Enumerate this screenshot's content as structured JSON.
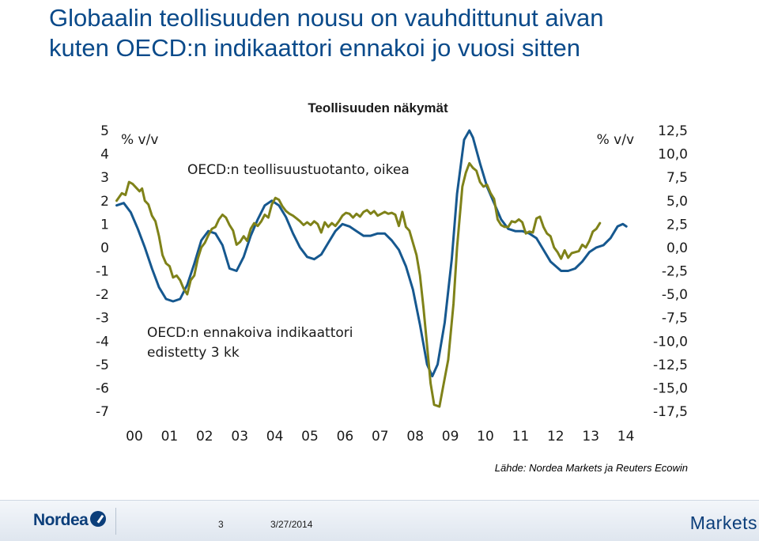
{
  "slide": {
    "title_line1": "Globaalin teollisuuden nousu on vauhdittunut aivan",
    "title_line2": "kuten OECD:n indikaattori ennakoi jo vuosi sitten",
    "source": "Lähde: Nordea Markets ja Reuters Ecowin"
  },
  "footer": {
    "logo_text": "Nordea",
    "page_number": "3",
    "date": "3/27/2014",
    "brand": "Markets"
  },
  "colors": {
    "leading_indicator": "#16588f",
    "industrial_production": "#7f8219",
    "title": "#0a4a8a"
  },
  "chart_data": {
    "type": "line",
    "title": "Teollisuuden näkymät",
    "left_axis": {
      "unit_label": "% v/v",
      "ylim": [
        -7,
        5
      ],
      "ticks": [
        "5",
        "4",
        "3",
        "2",
        "1",
        "0",
        "-1",
        "-2",
        "-3",
        "-4",
        "-5",
        "-6",
        "-7"
      ]
    },
    "right_axis": {
      "unit_label": "% v/v",
      "ylim": [
        -17.5,
        12.5
      ],
      "ticks": [
        "12,5",
        "10,0",
        "7,5",
        "5,0",
        "2,5",
        "0,0",
        "-2,5",
        "-5,0",
        "-7,5",
        "-10,0",
        "-12,5",
        "-15,0",
        "-17,5"
      ]
    },
    "x_axis": {
      "range": [
        2000,
        2014.3
      ],
      "ticks": [
        "00",
        "01",
        "02",
        "03",
        "04",
        "05",
        "06",
        "07",
        "08",
        "09",
        "10",
        "11",
        "12",
        "13",
        "14"
      ]
    },
    "series": [
      {
        "name": "OECD:n ennakoiva indikaattori edistetty 3 kk",
        "label_line1": "OECD:n ennakoiva indikaattori",
        "label_line2": "edistetty 3 kk",
        "axis": "left",
        "points": [
          [
            1999.9,
            1.8
          ],
          [
            2000.1,
            1.9
          ],
          [
            2000.3,
            1.5
          ],
          [
            2000.5,
            0.8
          ],
          [
            2000.7,
            0.0
          ],
          [
            2000.9,
            -0.9
          ],
          [
            2001.1,
            -1.7
          ],
          [
            2001.3,
            -2.2
          ],
          [
            2001.5,
            -2.3
          ],
          [
            2001.7,
            -2.2
          ],
          [
            2001.9,
            -1.6
          ],
          [
            2002.1,
            -0.7
          ],
          [
            2002.3,
            0.3
          ],
          [
            2002.5,
            0.7
          ],
          [
            2002.7,
            0.6
          ],
          [
            2002.9,
            0.1
          ],
          [
            2003.1,
            -0.9
          ],
          [
            2003.3,
            -1.0
          ],
          [
            2003.5,
            -0.4
          ],
          [
            2003.7,
            0.5
          ],
          [
            2003.9,
            1.2
          ],
          [
            2004.1,
            1.8
          ],
          [
            2004.3,
            2.0
          ],
          [
            2004.5,
            1.8
          ],
          [
            2004.7,
            1.3
          ],
          [
            2004.9,
            0.6
          ],
          [
            2005.1,
            0.0
          ],
          [
            2005.3,
            -0.4
          ],
          [
            2005.5,
            -0.5
          ],
          [
            2005.7,
            -0.3
          ],
          [
            2005.9,
            0.2
          ],
          [
            2006.1,
            0.7
          ],
          [
            2006.3,
            1.0
          ],
          [
            2006.5,
            0.9
          ],
          [
            2006.7,
            0.7
          ],
          [
            2006.9,
            0.5
          ],
          [
            2007.1,
            0.5
          ],
          [
            2007.3,
            0.6
          ],
          [
            2007.5,
            0.6
          ],
          [
            2007.7,
            0.3
          ],
          [
            2007.9,
            -0.1
          ],
          [
            2008.1,
            -0.8
          ],
          [
            2008.3,
            -1.8
          ],
          [
            2008.5,
            -3.3
          ],
          [
            2008.7,
            -5.0
          ],
          [
            2008.85,
            -5.5
          ],
          [
            2009.0,
            -5.0
          ],
          [
            2009.2,
            -3.2
          ],
          [
            2009.4,
            -0.5
          ],
          [
            2009.55,
            2.3
          ],
          [
            2009.75,
            4.6
          ],
          [
            2009.9,
            5.0
          ],
          [
            2010.0,
            4.7
          ],
          [
            2010.2,
            3.6
          ],
          [
            2010.4,
            2.6
          ],
          [
            2010.6,
            1.9
          ],
          [
            2010.8,
            1.2
          ],
          [
            2011.0,
            0.8
          ],
          [
            2011.2,
            0.7
          ],
          [
            2011.4,
            0.7
          ],
          [
            2011.6,
            0.6
          ],
          [
            2011.8,
            0.4
          ],
          [
            2012.0,
            -0.1
          ],
          [
            2012.2,
            -0.6
          ],
          [
            2012.5,
            -1.0
          ],
          [
            2012.7,
            -1.0
          ],
          [
            2012.9,
            -0.9
          ],
          [
            2013.1,
            -0.6
          ],
          [
            2013.3,
            -0.2
          ],
          [
            2013.5,
            0.0
          ],
          [
            2013.7,
            0.1
          ],
          [
            2013.9,
            0.4
          ],
          [
            2014.1,
            0.9
          ],
          [
            2014.25,
            1.0
          ],
          [
            2014.35,
            0.9
          ]
        ]
      },
      {
        "name": "OECD:n teollisuustuotanto, oikea",
        "label_line1": "OECD:n teollisuustuotanto, oikea",
        "axis": "right",
        "points": [
          [
            1999.9,
            5.0
          ],
          [
            2000.05,
            5.8
          ],
          [
            2000.15,
            5.6
          ],
          [
            2000.25,
            7.0
          ],
          [
            2000.35,
            6.8
          ],
          [
            2000.45,
            6.4
          ],
          [
            2000.55,
            6.0
          ],
          [
            2000.62,
            6.3
          ],
          [
            2000.7,
            5.0
          ],
          [
            2000.8,
            4.6
          ],
          [
            2000.9,
            3.4
          ],
          [
            2001.0,
            2.8
          ],
          [
            2001.1,
            1.2
          ],
          [
            2001.2,
            -0.8
          ],
          [
            2001.3,
            -1.7
          ],
          [
            2001.4,
            -2.0
          ],
          [
            2001.5,
            -3.2
          ],
          [
            2001.6,
            -3.0
          ],
          [
            2001.7,
            -3.5
          ],
          [
            2001.8,
            -4.4
          ],
          [
            2001.9,
            -5.0
          ],
          [
            2002.0,
            -3.5
          ],
          [
            2002.1,
            -3.0
          ],
          [
            2002.2,
            -1.2
          ],
          [
            2002.3,
            0.0
          ],
          [
            2002.4,
            0.5
          ],
          [
            2002.5,
            1.3
          ],
          [
            2002.6,
            2.0
          ],
          [
            2002.7,
            2.2
          ],
          [
            2002.8,
            3.0
          ],
          [
            2002.9,
            3.5
          ],
          [
            2003.0,
            3.2
          ],
          [
            2003.1,
            2.4
          ],
          [
            2003.2,
            1.8
          ],
          [
            2003.3,
            0.3
          ],
          [
            2003.4,
            0.6
          ],
          [
            2003.5,
            1.2
          ],
          [
            2003.6,
            0.7
          ],
          [
            2003.7,
            2.0
          ],
          [
            2003.8,
            2.6
          ],
          [
            2003.9,
            2.3
          ],
          [
            2004.0,
            2.8
          ],
          [
            2004.1,
            3.5
          ],
          [
            2004.2,
            3.2
          ],
          [
            2004.3,
            4.6
          ],
          [
            2004.4,
            5.3
          ],
          [
            2004.5,
            5.1
          ],
          [
            2004.6,
            4.4
          ],
          [
            2004.7,
            3.9
          ],
          [
            2004.8,
            3.6
          ],
          [
            2004.9,
            3.4
          ],
          [
            2005.0,
            3.1
          ],
          [
            2005.1,
            2.8
          ],
          [
            2005.2,
            2.4
          ],
          [
            2005.3,
            2.7
          ],
          [
            2005.4,
            2.4
          ],
          [
            2005.5,
            2.8
          ],
          [
            2005.6,
            2.5
          ],
          [
            2005.7,
            1.6
          ],
          [
            2005.8,
            2.7
          ],
          [
            2005.9,
            2.2
          ],
          [
            2006.0,
            2.6
          ],
          [
            2006.1,
            2.3
          ],
          [
            2006.2,
            2.8
          ],
          [
            2006.3,
            3.4
          ],
          [
            2006.4,
            3.7
          ],
          [
            2006.5,
            3.6
          ],
          [
            2006.6,
            3.2
          ],
          [
            2006.7,
            3.6
          ],
          [
            2006.8,
            3.3
          ],
          [
            2006.9,
            3.8
          ],
          [
            2007.0,
            4.0
          ],
          [
            2007.1,
            3.6
          ],
          [
            2007.2,
            3.9
          ],
          [
            2007.3,
            3.4
          ],
          [
            2007.4,
            3.6
          ],
          [
            2007.5,
            3.8
          ],
          [
            2007.6,
            3.6
          ],
          [
            2007.7,
            3.7
          ],
          [
            2007.8,
            3.5
          ],
          [
            2007.9,
            2.3
          ],
          [
            2008.0,
            3.8
          ],
          [
            2008.1,
            2.2
          ],
          [
            2008.2,
            1.8
          ],
          [
            2008.3,
            0.5
          ],
          [
            2008.4,
            -0.8
          ],
          [
            2008.5,
            -3.0
          ],
          [
            2008.6,
            -6.5
          ],
          [
            2008.7,
            -10.5
          ],
          [
            2008.8,
            -14.5
          ],
          [
            2008.9,
            -16.8
          ],
          [
            2009.05,
            -17.0
          ],
          [
            2009.15,
            -15.0
          ],
          [
            2009.3,
            -12.0
          ],
          [
            2009.45,
            -6.0
          ],
          [
            2009.55,
            0.0
          ],
          [
            2009.7,
            6.5
          ],
          [
            2009.8,
            8.0
          ],
          [
            2009.9,
            9.0
          ],
          [
            2010.0,
            8.5
          ],
          [
            2010.1,
            8.2
          ],
          [
            2010.2,
            7.0
          ],
          [
            2010.3,
            6.5
          ],
          [
            2010.4,
            6.7
          ],
          [
            2010.5,
            5.8
          ],
          [
            2010.6,
            5.2
          ],
          [
            2010.7,
            3.0
          ],
          [
            2010.8,
            2.4
          ],
          [
            2010.9,
            2.2
          ],
          [
            2011.0,
            2.2
          ],
          [
            2011.1,
            2.8
          ],
          [
            2011.2,
            2.7
          ],
          [
            2011.3,
            3.0
          ],
          [
            2011.4,
            2.7
          ],
          [
            2011.5,
            1.5
          ],
          [
            2011.6,
            1.7
          ],
          [
            2011.7,
            1.6
          ],
          [
            2011.8,
            3.1
          ],
          [
            2011.9,
            3.3
          ],
          [
            2012.0,
            2.2
          ],
          [
            2012.1,
            1.5
          ],
          [
            2012.2,
            1.2
          ],
          [
            2012.3,
            0.0
          ],
          [
            2012.4,
            -0.5
          ],
          [
            2012.5,
            -1.2
          ],
          [
            2012.6,
            -0.3
          ],
          [
            2012.7,
            -1.1
          ],
          [
            2012.8,
            -0.6
          ],
          [
            2012.9,
            -0.5
          ],
          [
            2013.0,
            -0.4
          ],
          [
            2013.1,
            0.3
          ],
          [
            2013.2,
            0.0
          ],
          [
            2013.3,
            0.7
          ],
          [
            2013.4,
            1.7
          ],
          [
            2013.5,
            2.0
          ],
          [
            2013.6,
            2.6
          ]
        ]
      }
    ]
  }
}
